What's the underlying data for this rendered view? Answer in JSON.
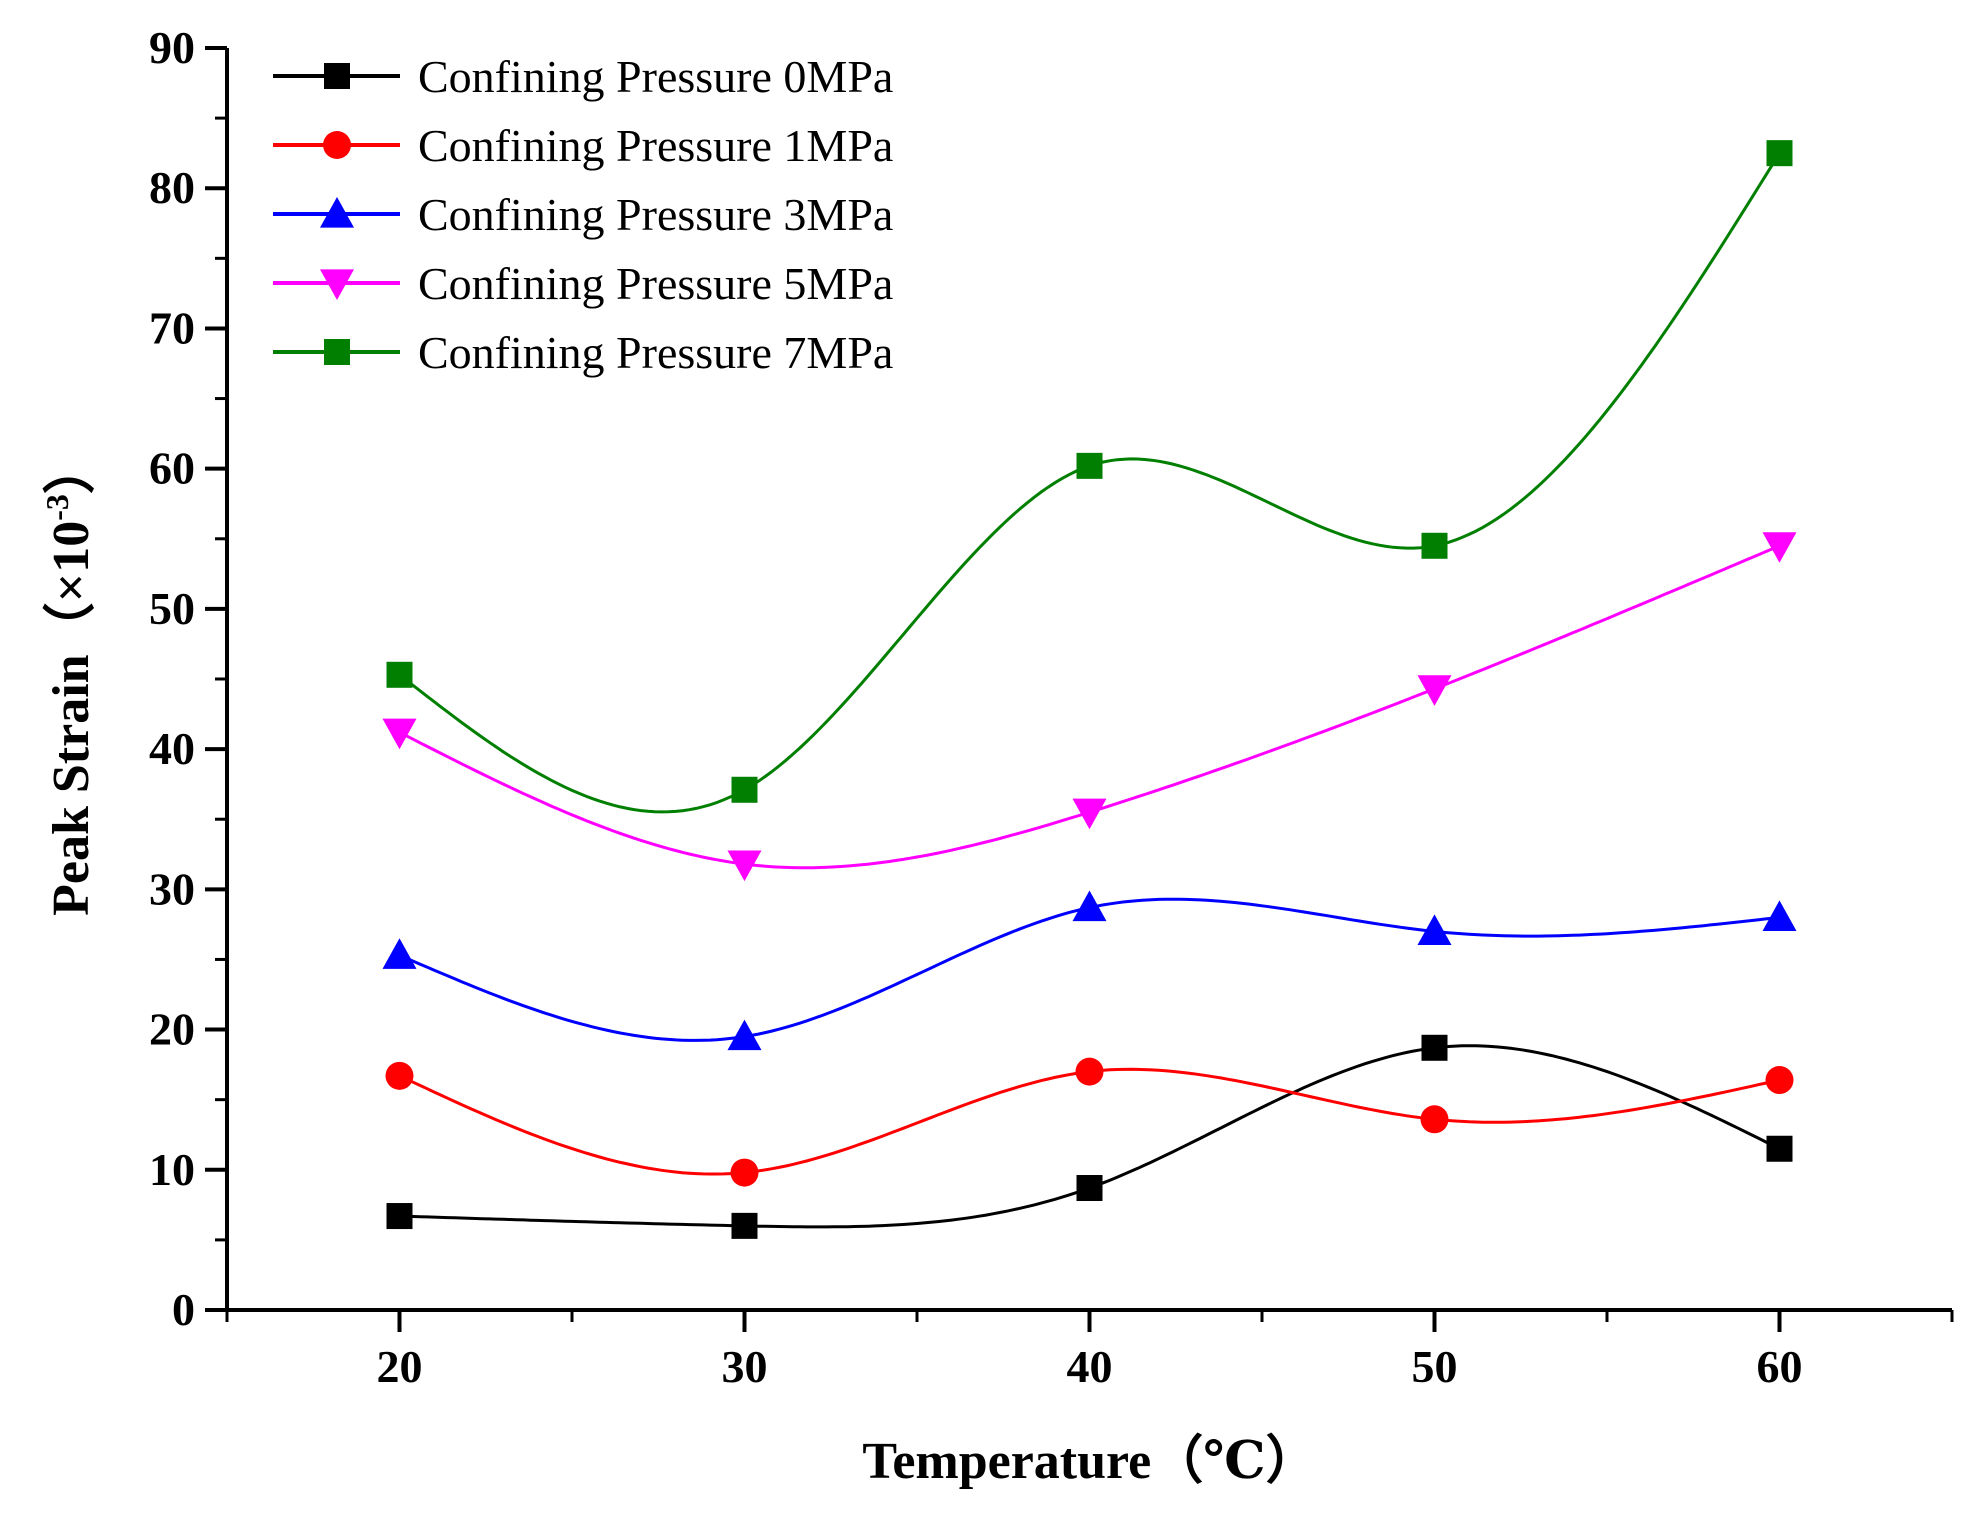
{
  "chart_data": {
    "type": "scatter",
    "title": "",
    "xlabel": "Temperature（℃）",
    "ylabel_main": "Peak Strain（×10",
    "ylabel_sup": "-3",
    "ylabel_close": "）",
    "x": [
      20,
      30,
      40,
      50,
      60
    ],
    "xlim": [
      15,
      65
    ],
    "ylim": [
      0,
      90
    ],
    "xticks": [
      "20",
      "30",
      "40",
      "50",
      "60"
    ],
    "yticks": [
      "0",
      "10",
      "20",
      "30",
      "40",
      "50",
      "60",
      "70",
      "80",
      "90"
    ],
    "legend_position": "top-left",
    "grid": false,
    "series": [
      {
        "name": "Confining Pressure 0MPa",
        "color": "#000000",
        "marker": "square",
        "values": [
          6.7,
          6.0,
          8.7,
          18.7,
          11.5
        ]
      },
      {
        "name": "Confining Pressure 1MPa",
        "color": "#ff0000",
        "marker": "circle",
        "values": [
          16.7,
          9.8,
          17.0,
          13.6,
          16.4
        ]
      },
      {
        "name": "Confining Pressure 3MPa",
        "color": "#0000ff",
        "marker": "triangle-up",
        "values": [
          25.3,
          19.5,
          28.7,
          27.0,
          28.0
        ]
      },
      {
        "name": "Confining Pressure 5MPa",
        "color": "#ff00ff",
        "marker": "triangle-down",
        "values": [
          41.2,
          31.8,
          35.5,
          44.3,
          54.5
        ]
      },
      {
        "name": "Confining Pressure 7MPa",
        "color": "#007f00",
        "marker": "square",
        "values": [
          45.3,
          37.1,
          60.2,
          54.5,
          82.5
        ]
      }
    ]
  }
}
